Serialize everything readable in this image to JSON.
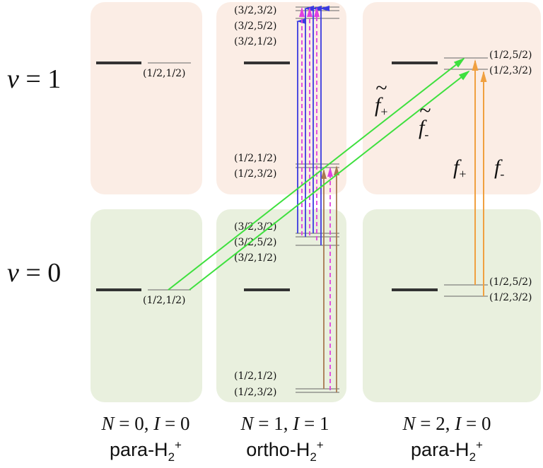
{
  "colors": {
    "upper_box": "#fbede5",
    "lower_box": "#e9f0de",
    "level": "#333333",
    "thin": "#666666",
    "blue": "#3a3ae0",
    "magenta": "#e040e0",
    "brown": "#a87850",
    "orange": "#f0a040",
    "green": "#3ee03e"
  },
  "vib_labels": {
    "v1": "v",
    "v1_rest": " = 1",
    "v0": "v",
    "v0_rest": " = 0"
  },
  "columns": [
    {
      "n_label": "N",
      "n_val": " = 0, ",
      "i_label": "I",
      "i_val": " = 0",
      "species": "para-H",
      "sub": "2",
      "sup": "+"
    },
    {
      "n_label": "N",
      "n_val": " = 1, ",
      "i_label": "I",
      "i_val": " = 1",
      "species": "ortho-H",
      "sub": "2",
      "sup": "+"
    },
    {
      "n_label": "N",
      "n_val": " = 2, ",
      "i_label": "I",
      "i_val": " = 0",
      "species": "para-H",
      "sub": "2",
      "sup": "+"
    }
  ],
  "hf_labels": {
    "para0_v1": "(1/2,1/2)",
    "para0_v0": "(1/2,1/2)",
    "ortho_v1_top": [
      "(3/2,3/2)",
      "(3/2,5/2)",
      "(3/2,1/2)"
    ],
    "ortho_v1_bottom": [
      "(1/2,1/2)",
      "(1/2,3/2)"
    ],
    "ortho_v0_top": [
      "(3/2,3/2)",
      "(3/2,5/2)",
      "(3/2,1/2)"
    ],
    "ortho_v0_bottom": [
      "(1/2,1/2)",
      "(1/2,3/2)"
    ],
    "para2_v1": [
      "(1/2,5/2)",
      "(1/2,3/2)"
    ],
    "para2_v0": [
      "(1/2,5/2)",
      "(1/2,3/2)"
    ]
  },
  "transition_labels": {
    "ft_plus": "f",
    "ft_plus_sub": "+",
    "ft_minus": "f",
    "ft_minus_sub": "-",
    "f_plus": "f",
    "f_plus_sub": "+",
    "f_minus": "f",
    "f_minus_sub": "-",
    "tilde": "~"
  }
}
